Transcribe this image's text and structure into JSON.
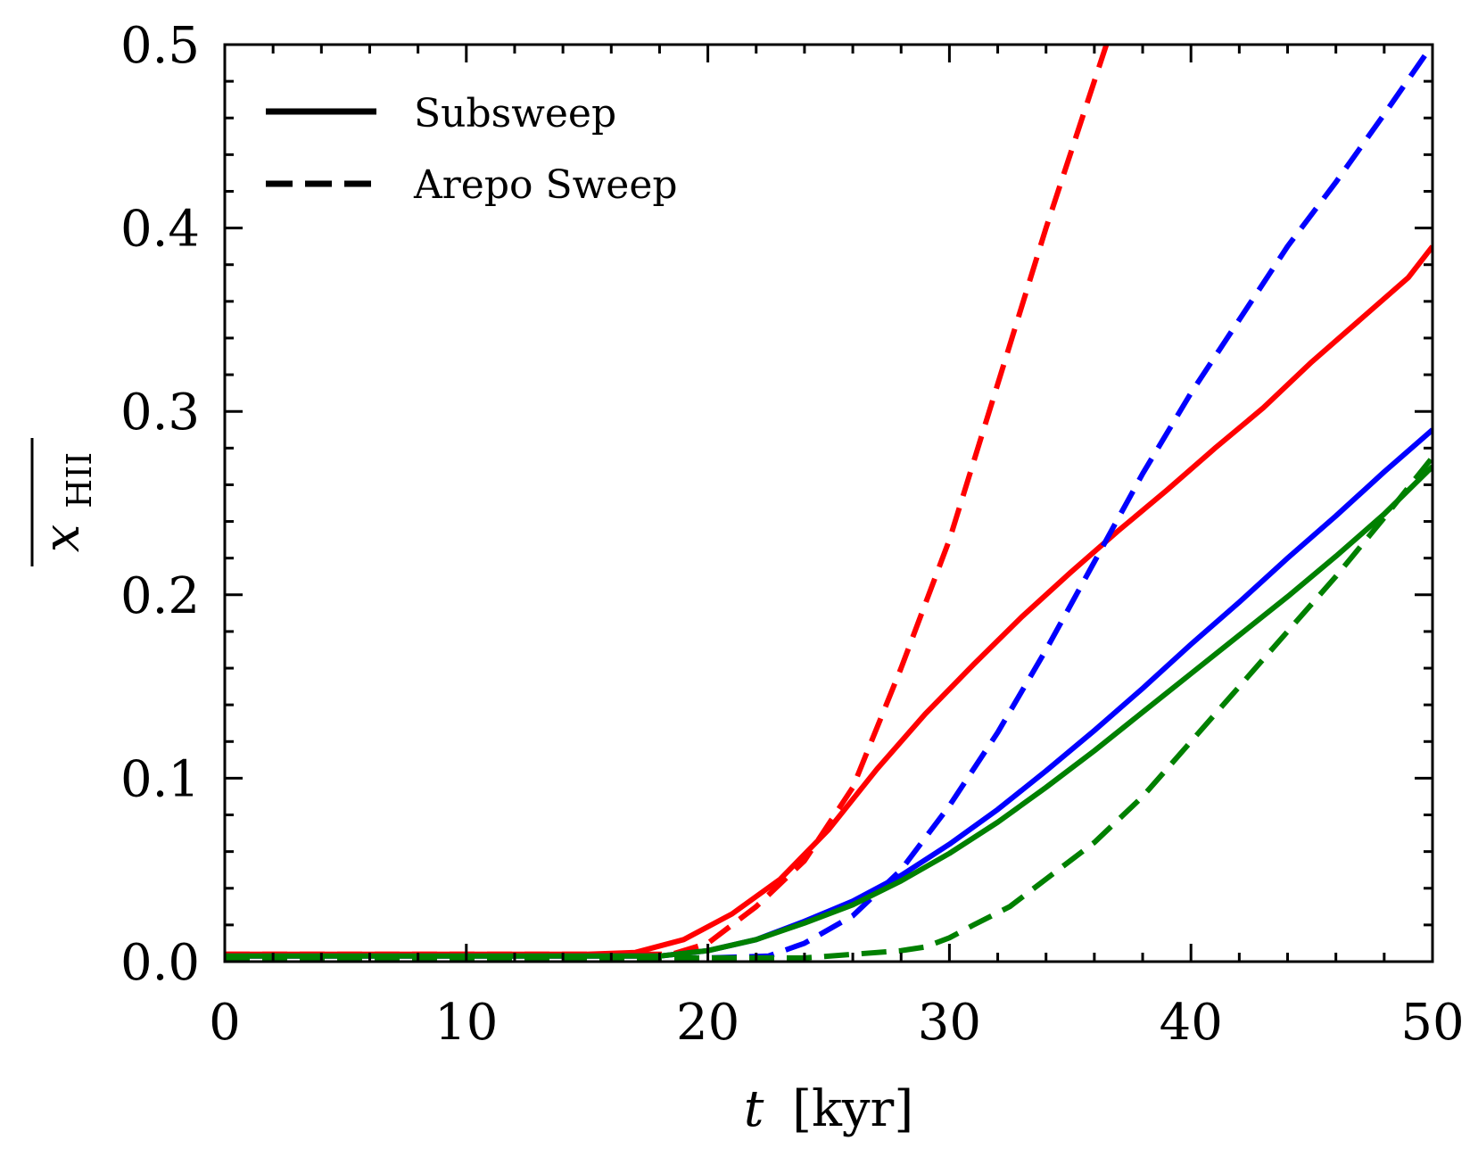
{
  "chart_data": {
    "type": "line",
    "title": "",
    "xlabel_var": "t",
    "xlabel_unit": "[kyr]",
    "ylabel_var": "x",
    "ylabel_sub": "HII",
    "xlim": [
      0,
      50
    ],
    "ylim": [
      0,
      0.5
    ],
    "xticks": [
      "0",
      "10",
      "20",
      "30",
      "40",
      "50"
    ],
    "yticks": [
      "0.0",
      "0.1",
      "0.2",
      "0.3",
      "0.4",
      "0.5"
    ],
    "grid": false,
    "legend_position": "top-left",
    "legend": [
      {
        "label": "Subsweep",
        "style": "solid"
      },
      {
        "label": "Arepo Sweep",
        "style": "dashed"
      }
    ],
    "series": [
      {
        "name": "red-subsweep",
        "color": "#ff0000",
        "style": "solid",
        "x": [
          0,
          10,
          15,
          17,
          19,
          21,
          23,
          25,
          27,
          29,
          31,
          33,
          35,
          37,
          39,
          41,
          43,
          45,
          47,
          49,
          50
        ],
        "y": [
          0.004,
          0.004,
          0.004,
          0.005,
          0.012,
          0.026,
          0.045,
          0.072,
          0.105,
          0.135,
          0.162,
          0.188,
          0.212,
          0.235,
          0.257,
          0.28,
          0.302,
          0.327,
          0.35,
          0.373,
          0.39
        ]
      },
      {
        "name": "red-arepo",
        "color": "#ff0000",
        "style": "dashed",
        "x": [
          0,
          10,
          15,
          18.5,
          20,
          22,
          24,
          26,
          28,
          30,
          32,
          34,
          35.5,
          36.5
        ],
        "y": [
          0.004,
          0.004,
          0.004,
          0.004,
          0.01,
          0.03,
          0.055,
          0.095,
          0.16,
          0.23,
          0.315,
          0.4,
          0.46,
          0.5
        ]
      },
      {
        "name": "blue-subsweep",
        "color": "#0000ff",
        "style": "solid",
        "x": [
          0,
          10,
          18,
          20,
          22,
          24,
          26,
          28,
          30,
          32,
          34,
          36,
          38,
          40,
          42,
          44,
          46,
          48,
          50
        ],
        "y": [
          0.003,
          0.003,
          0.003,
          0.006,
          0.012,
          0.022,
          0.033,
          0.047,
          0.064,
          0.083,
          0.104,
          0.126,
          0.149,
          0.173,
          0.196,
          0.22,
          0.243,
          0.267,
          0.29
        ]
      },
      {
        "name": "blue-arepo",
        "color": "#0000ff",
        "style": "dashed",
        "x": [
          0,
          10,
          20,
          22.5,
          24,
          26,
          28,
          30,
          32,
          34,
          36,
          38,
          40,
          42,
          44,
          46,
          48,
          50
        ],
        "y": [
          0.002,
          0.002,
          0.002,
          0.003,
          0.01,
          0.025,
          0.05,
          0.085,
          0.125,
          0.17,
          0.218,
          0.266,
          0.31,
          0.35,
          0.39,
          0.425,
          0.462,
          0.5
        ]
      },
      {
        "name": "green-subsweep",
        "color": "#008000",
        "style": "solid",
        "x": [
          0,
          10,
          18,
          20,
          22,
          24,
          26,
          28,
          30,
          32,
          34,
          36,
          38,
          40,
          42,
          44,
          46,
          48,
          50
        ],
        "y": [
          0.003,
          0.003,
          0.003,
          0.006,
          0.012,
          0.021,
          0.031,
          0.044,
          0.059,
          0.076,
          0.095,
          0.115,
          0.136,
          0.157,
          0.178,
          0.199,
          0.221,
          0.244,
          0.27
        ]
      },
      {
        "name": "green-arepo",
        "color": "#008000",
        "style": "dashed",
        "x": [
          0,
          10,
          20,
          24,
          26,
          28,
          29,
          30,
          31,
          32.5,
          34,
          36,
          38,
          40,
          42,
          44,
          46,
          48,
          50
        ],
        "y": [
          0.002,
          0.002,
          0.002,
          0.002,
          0.004,
          0.006,
          0.008,
          0.013,
          0.02,
          0.03,
          0.045,
          0.065,
          0.09,
          0.12,
          0.15,
          0.18,
          0.21,
          0.242,
          0.275
        ]
      }
    ]
  }
}
